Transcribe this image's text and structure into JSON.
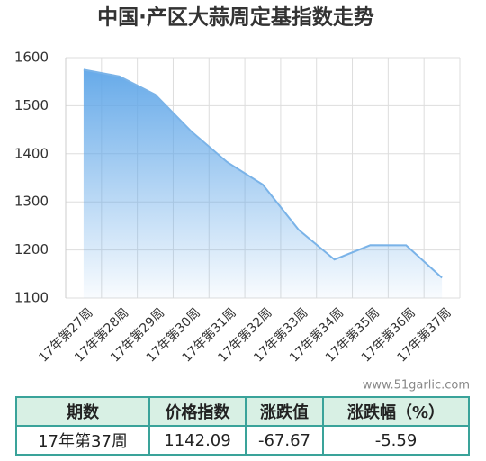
{
  "chart_data": {
    "type": "area",
    "title": "中国·产区大蒜周定基指数走势",
    "categories": [
      "17年第27周",
      "17年第28周",
      "17年第29周",
      "17年第30周",
      "17年第31周",
      "17年第32周",
      "17年第33周",
      "17年第34周",
      "17年第35周",
      "17年第36周",
      "17年第37周"
    ],
    "values": [
      1575,
      1561,
      1523,
      1447,
      1383,
      1336,
      1242,
      1180,
      1210,
      1209.76,
      1142.09
    ],
    "color": "#7ab3e8",
    "ylim": [
      1100,
      1600
    ],
    "yticks": [
      1100,
      1200,
      1300,
      1400,
      1500,
      1600
    ],
    "grid": true,
    "watermark": "www.51garlic.com"
  },
  "table": {
    "header": [
      "期数",
      "价格指数",
      "涨跌值",
      "涨跌幅（%）"
    ],
    "rows": [
      [
        "17年第37周",
        "1142.09",
        "-67.67",
        "-5.59"
      ]
    ]
  }
}
